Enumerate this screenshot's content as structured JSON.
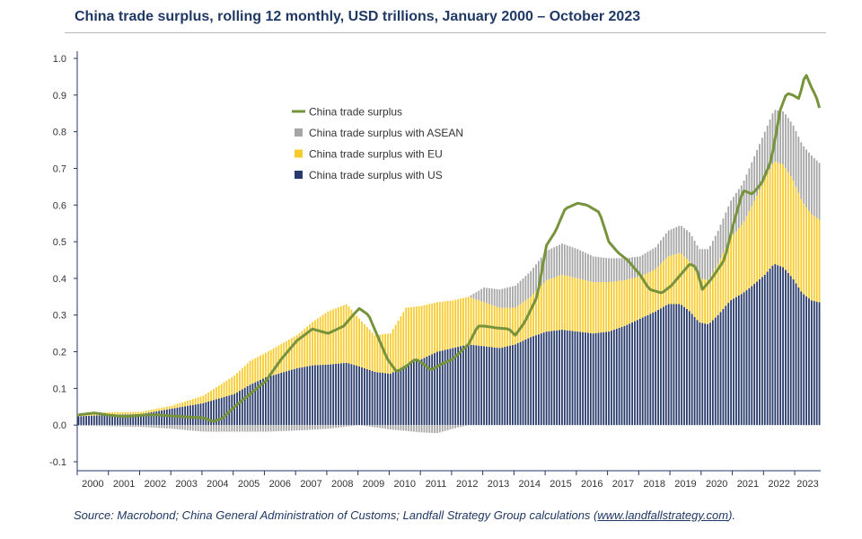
{
  "chart_data": {
    "type": "bar",
    "title": "China trade surplus, rolling 12 monthly, USD trillions, January 2000 – October 2023",
    "xlabel": "",
    "ylabel": "",
    "ylim": [
      -0.12,
      1.02
    ],
    "y_ticks": [
      "1.0",
      "0.9",
      "0.8",
      "0.7",
      "0.6",
      "0.5",
      "0.4",
      "0.3",
      "0.2",
      "0.1",
      "0.0",
      "-0.1"
    ],
    "y_tick_values": [
      1.0,
      0.9,
      0.8,
      0.7,
      0.6,
      0.5,
      0.4,
      0.3,
      0.2,
      0.1,
      0.0,
      -0.1
    ],
    "x_ticks": [
      "2000",
      "2001",
      "2002",
      "2003",
      "2004",
      "2005",
      "2006",
      "2007",
      "2008",
      "2009",
      "2010",
      "2011",
      "2012",
      "2013",
      "2014",
      "2015",
      "2016",
      "2017",
      "2018",
      "2019",
      "2020",
      "2021",
      "2022",
      "2023"
    ],
    "time_range": {
      "start": "2000-01",
      "end": "2023-10"
    },
    "stacking": "stacked bars, ASEAN stacked on EU on US; negative values below zero",
    "legend": {
      "placement": "upper-center",
      "entries": [
        {
          "label": "China trade surplus",
          "kind": "line",
          "color": "#77933c"
        },
        {
          "label": "China trade surplus with ASEAN",
          "kind": "bar",
          "color": "#a6a6a6"
        },
        {
          "label": "China trade surplus with EU",
          "kind": "bar",
          "color": "#f7cb2d"
        },
        {
          "label": "China trade surplus with US",
          "kind": "bar",
          "color": "#283a6b"
        }
      ]
    },
    "series": [
      {
        "name": "China trade surplus with US",
        "kind": "bar",
        "color": "#283a6b",
        "keypoints": [
          [
            2000.0,
            0.024
          ],
          [
            2001.0,
            0.028
          ],
          [
            2002.0,
            0.03
          ],
          [
            2003.0,
            0.045
          ],
          [
            2004.0,
            0.06
          ],
          [
            2005.0,
            0.085
          ],
          [
            2005.5,
            0.11
          ],
          [
            2006.0,
            0.13
          ],
          [
            2007.0,
            0.155
          ],
          [
            2007.5,
            0.163
          ],
          [
            2008.0,
            0.165
          ],
          [
            2008.6,
            0.17
          ],
          [
            2009.0,
            0.16
          ],
          [
            2009.5,
            0.145
          ],
          [
            2010.0,
            0.14
          ],
          [
            2010.5,
            0.165
          ],
          [
            2011.0,
            0.18
          ],
          [
            2011.5,
            0.2
          ],
          [
            2012.0,
            0.21
          ],
          [
            2012.5,
            0.22
          ],
          [
            2013.0,
            0.215
          ],
          [
            2013.5,
            0.21
          ],
          [
            2014.0,
            0.22
          ],
          [
            2014.5,
            0.24
          ],
          [
            2015.0,
            0.255
          ],
          [
            2015.5,
            0.26
          ],
          [
            2016.0,
            0.255
          ],
          [
            2016.5,
            0.25
          ],
          [
            2017.0,
            0.255
          ],
          [
            2017.5,
            0.27
          ],
          [
            2018.0,
            0.29
          ],
          [
            2018.5,
            0.31
          ],
          [
            2018.9,
            0.33
          ],
          [
            2019.3,
            0.33
          ],
          [
            2019.6,
            0.31
          ],
          [
            2019.9,
            0.28
          ],
          [
            2020.2,
            0.275
          ],
          [
            2020.5,
            0.3
          ],
          [
            2020.9,
            0.34
          ],
          [
            2021.3,
            0.36
          ],
          [
            2021.6,
            0.38
          ],
          [
            2022.0,
            0.41
          ],
          [
            2022.3,
            0.44
          ],
          [
            2022.6,
            0.43
          ],
          [
            2022.9,
            0.4
          ],
          [
            2023.2,
            0.36
          ],
          [
            2023.5,
            0.34
          ],
          [
            2023.75,
            0.335
          ]
        ]
      },
      {
        "name": "China trade surplus with EU",
        "kind": "bar",
        "color": "#f7cb2d",
        "keypoints": [
          [
            2000.0,
            0.006
          ],
          [
            2001.0,
            0.007
          ],
          [
            2002.0,
            0.006
          ],
          [
            2003.0,
            0.008
          ],
          [
            2004.0,
            0.02
          ],
          [
            2005.0,
            0.05
          ],
          [
            2005.5,
            0.065
          ],
          [
            2006.0,
            0.067
          ],
          [
            2007.0,
            0.09
          ],
          [
            2007.5,
            0.118
          ],
          [
            2008.0,
            0.145
          ],
          [
            2008.6,
            0.16
          ],
          [
            2009.0,
            0.13
          ],
          [
            2009.5,
            0.1
          ],
          [
            2010.0,
            0.11
          ],
          [
            2010.5,
            0.155
          ],
          [
            2011.0,
            0.145
          ],
          [
            2011.5,
            0.135
          ],
          [
            2012.0,
            0.13
          ],
          [
            2012.5,
            0.13
          ],
          [
            2013.0,
            0.12
          ],
          [
            2013.5,
            0.11
          ],
          [
            2014.0,
            0.1
          ],
          [
            2014.5,
            0.11
          ],
          [
            2015.0,
            0.14
          ],
          [
            2015.5,
            0.15
          ],
          [
            2016.0,
            0.145
          ],
          [
            2016.5,
            0.14
          ],
          [
            2017.0,
            0.135
          ],
          [
            2017.5,
            0.125
          ],
          [
            2018.0,
            0.115
          ],
          [
            2018.5,
            0.115
          ],
          [
            2018.9,
            0.13
          ],
          [
            2019.3,
            0.14
          ],
          [
            2019.6,
            0.135
          ],
          [
            2019.9,
            0.12
          ],
          [
            2020.2,
            0.12
          ],
          [
            2020.5,
            0.14
          ],
          [
            2020.9,
            0.17
          ],
          [
            2021.3,
            0.19
          ],
          [
            2021.6,
            0.22
          ],
          [
            2022.0,
            0.26
          ],
          [
            2022.3,
            0.28
          ],
          [
            2022.6,
            0.28
          ],
          [
            2022.9,
            0.27
          ],
          [
            2023.2,
            0.25
          ],
          [
            2023.5,
            0.235
          ],
          [
            2023.75,
            0.225
          ]
        ]
      },
      {
        "name": "China trade surplus with ASEAN",
        "kind": "bar",
        "color": "#a6a6a6",
        "keypoints": [
          [
            2000.0,
            -0.002
          ],
          [
            2001.0,
            -0.003
          ],
          [
            2002.0,
            -0.005
          ],
          [
            2003.0,
            -0.01
          ],
          [
            2004.0,
            -0.018
          ],
          [
            2005.0,
            -0.018
          ],
          [
            2006.0,
            -0.018
          ],
          [
            2007.0,
            -0.015
          ],
          [
            2008.0,
            -0.01
          ],
          [
            2009.0,
            0.0
          ],
          [
            2010.0,
            -0.012
          ],
          [
            2011.0,
            -0.02
          ],
          [
            2011.5,
            -0.022
          ],
          [
            2012.0,
            -0.01
          ],
          [
            2012.5,
            0.0
          ],
          [
            2013.0,
            0.04
          ],
          [
            2013.5,
            0.05
          ],
          [
            2014.0,
            0.06
          ],
          [
            2014.5,
            0.07
          ],
          [
            2015.0,
            0.08
          ],
          [
            2015.5,
            0.085
          ],
          [
            2016.0,
            0.08
          ],
          [
            2016.5,
            0.07
          ],
          [
            2017.0,
            0.065
          ],
          [
            2017.5,
            0.06
          ],
          [
            2018.0,
            0.055
          ],
          [
            2018.5,
            0.06
          ],
          [
            2018.9,
            0.07
          ],
          [
            2019.3,
            0.075
          ],
          [
            2019.6,
            0.08
          ],
          [
            2019.9,
            0.08
          ],
          [
            2020.2,
            0.085
          ],
          [
            2020.5,
            0.09
          ],
          [
            2020.9,
            0.1
          ],
          [
            2021.3,
            0.11
          ],
          [
            2021.6,
            0.12
          ],
          [
            2022.0,
            0.13
          ],
          [
            2022.3,
            0.14
          ],
          [
            2022.6,
            0.145
          ],
          [
            2022.9,
            0.15
          ],
          [
            2023.2,
            0.155
          ],
          [
            2023.5,
            0.16
          ],
          [
            2023.75,
            0.155
          ]
        ]
      },
      {
        "name": "China trade surplus",
        "kind": "line",
        "color": "#77933c",
        "keypoints": [
          [
            2000.0,
            0.028
          ],
          [
            2000.5,
            0.033
          ],
          [
            2001.0,
            0.027
          ],
          [
            2001.5,
            0.023
          ],
          [
            2002.0,
            0.027
          ],
          [
            2002.5,
            0.028
          ],
          [
            2003.0,
            0.025
          ],
          [
            2003.5,
            0.022
          ],
          [
            2004.0,
            0.02
          ],
          [
            2004.3,
            0.01
          ],
          [
            2004.6,
            0.018
          ],
          [
            2005.0,
            0.05
          ],
          [
            2005.5,
            0.085
          ],
          [
            2006.0,
            0.12
          ],
          [
            2006.5,
            0.18
          ],
          [
            2007.0,
            0.23
          ],
          [
            2007.5,
            0.262
          ],
          [
            2008.0,
            0.25
          ],
          [
            2008.5,
            0.27
          ],
          [
            2008.8,
            0.3
          ],
          [
            2009.0,
            0.318
          ],
          [
            2009.3,
            0.3
          ],
          [
            2009.6,
            0.24
          ],
          [
            2009.9,
            0.18
          ],
          [
            2010.2,
            0.145
          ],
          [
            2010.5,
            0.16
          ],
          [
            2010.8,
            0.18
          ],
          [
            2011.0,
            0.17
          ],
          [
            2011.3,
            0.15
          ],
          [
            2011.6,
            0.165
          ],
          [
            2012.0,
            0.18
          ],
          [
            2012.5,
            0.22
          ],
          [
            2012.8,
            0.27
          ],
          [
            2013.0,
            0.27
          ],
          [
            2013.4,
            0.265
          ],
          [
            2013.8,
            0.262
          ],
          [
            2014.0,
            0.245
          ],
          [
            2014.3,
            0.28
          ],
          [
            2014.7,
            0.35
          ],
          [
            2015.0,
            0.49
          ],
          [
            2015.3,
            0.53
          ],
          [
            2015.6,
            0.59
          ],
          [
            2016.0,
            0.605
          ],
          [
            2016.3,
            0.6
          ],
          [
            2016.7,
            0.58
          ],
          [
            2017.0,
            0.5
          ],
          [
            2017.3,
            0.47
          ],
          [
            2017.6,
            0.45
          ],
          [
            2018.0,
            0.41
          ],
          [
            2018.3,
            0.37
          ],
          [
            2018.7,
            0.36
          ],
          [
            2019.0,
            0.38
          ],
          [
            2019.3,
            0.41
          ],
          [
            2019.6,
            0.44
          ],
          [
            2019.8,
            0.43
          ],
          [
            2020.0,
            0.37
          ],
          [
            2020.3,
            0.4
          ],
          [
            2020.7,
            0.45
          ],
          [
            2021.0,
            0.55
          ],
          [
            2021.3,
            0.64
          ],
          [
            2021.6,
            0.63
          ],
          [
            2021.9,
            0.66
          ],
          [
            2022.2,
            0.72
          ],
          [
            2022.5,
            0.86
          ],
          [
            2022.7,
            0.905
          ],
          [
            2022.9,
            0.9
          ],
          [
            2023.1,
            0.89
          ],
          [
            2023.3,
            0.96
          ],
          [
            2023.5,
            0.92
          ],
          [
            2023.65,
            0.895
          ],
          [
            2023.75,
            0.865
          ]
        ]
      }
    ]
  },
  "footer": {
    "source_prefix": "Source: Macrobond; China General Administration of Customs; Landfall Strategy Group calculations (",
    "source_link": "www.landfallstrategy.com",
    "source_suffix": ")."
  }
}
